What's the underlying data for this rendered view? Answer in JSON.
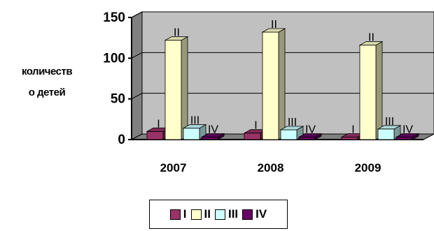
{
  "chart_data": {
    "type": "bar",
    "title": "",
    "xlabel": "",
    "ylabel": "количество детей",
    "ylabel_lines": [
      "количеств",
      "о детей"
    ],
    "categories": [
      "2007",
      "2008",
      "2009"
    ],
    "ylim": [
      0,
      150
    ],
    "yticks": [
      "0",
      "50",
      "100",
      "150"
    ],
    "grid": true,
    "legend_position": "bottom",
    "series": [
      {
        "name": "I",
        "values": [
          10,
          8,
          3
        ],
        "color": "#993366"
      },
      {
        "name": "II",
        "values": [
          122,
          132,
          116
        ],
        "color": "#ffffcc"
      },
      {
        "name": "III",
        "values": [
          14,
          12,
          13
        ],
        "color": "#ccffff"
      },
      {
        "name": "IV",
        "values": [
          3,
          3,
          3
        ],
        "color": "#660066"
      }
    ],
    "plot_background": "#c0c0c0",
    "wall_color": "#808080"
  }
}
